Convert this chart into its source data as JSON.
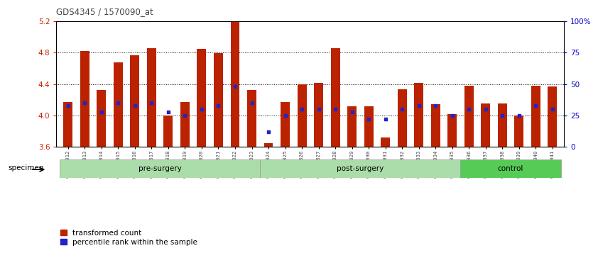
{
  "title": "GDS4345 / 1570090_at",
  "categories": [
    "GSM842012",
    "GSM842013",
    "GSM842014",
    "GSM842015",
    "GSM842016",
    "GSM842017",
    "GSM842018",
    "GSM842019",
    "GSM842020",
    "GSM842021",
    "GSM842022",
    "GSM842023",
    "GSM842024",
    "GSM842025",
    "GSM842026",
    "GSM842027",
    "GSM842028",
    "GSM842029",
    "GSM842030",
    "GSM842031",
    "GSM842032",
    "GSM842033",
    "GSM842034",
    "GSM842035",
    "GSM842036",
    "GSM842037",
    "GSM842038",
    "GSM842039",
    "GSM842040",
    "GSM842041"
  ],
  "bar_values": [
    4.17,
    4.82,
    4.32,
    4.68,
    4.77,
    4.86,
    4.0,
    4.17,
    4.85,
    4.79,
    5.19,
    4.32,
    3.65,
    4.17,
    4.4,
    4.41,
    4.86,
    4.12,
    4.12,
    3.72,
    4.33,
    4.41,
    4.14,
    4.02,
    4.38,
    4.15,
    4.15,
    4.0,
    4.38,
    4.37
  ],
  "blue_values": [
    33,
    35,
    28,
    35,
    33,
    35,
    28,
    25,
    30,
    33,
    48,
    35,
    12,
    25,
    30,
    30,
    30,
    28,
    22,
    22,
    30,
    33,
    33,
    25,
    30,
    30,
    25,
    25,
    33,
    30
  ],
  "ylim": [
    3.6,
    5.2
  ],
  "yticks_left": [
    3.6,
    4.0,
    4.4,
    4.8,
    5.2
  ],
  "yticks_right": [
    0,
    25,
    50,
    75,
    100
  ],
  "right_ylabels": [
    "0",
    "25",
    "50",
    "75",
    "100%"
  ],
  "group_starts": [
    0,
    12,
    24
  ],
  "group_ends": [
    12,
    24,
    30
  ],
  "group_labels": [
    "pre-surgery",
    "post-surgery",
    "control"
  ],
  "group_colors": [
    "#aaddaa",
    "#aaddaa",
    "#55cc55"
  ],
  "bar_color": "#bb2200",
  "blue_color": "#2222cc",
  "background_color": "#ffffff",
  "title_color": "#444444",
  "ylabel_color": "#cc2200",
  "right_ylabel_color": "#0000cc",
  "legend_red_label": "transformed count",
  "legend_blue_label": "percentile rank within the sample",
  "specimen_label": "specimen"
}
